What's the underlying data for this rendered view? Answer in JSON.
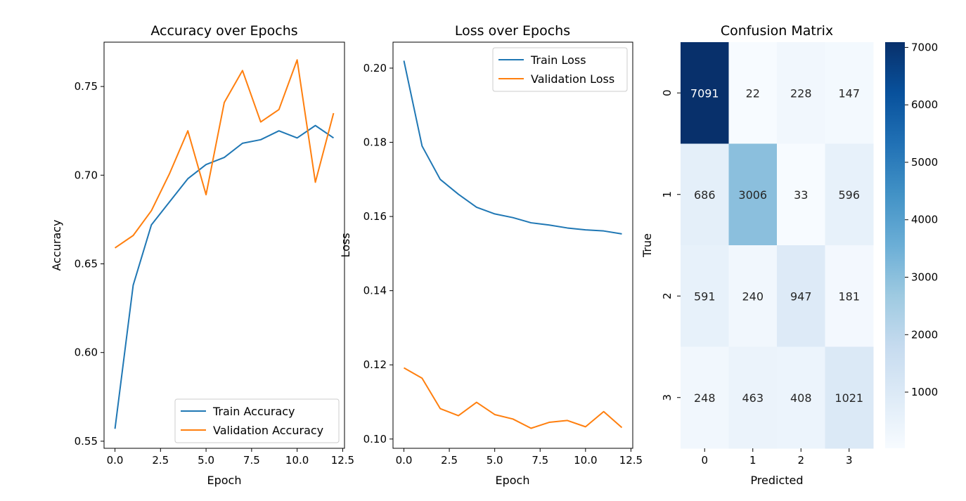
{
  "colors": {
    "train": "#1f77b4",
    "validation": "#ff7f0e",
    "heat_low": "#f7fbff",
    "heat_high": "#08306b"
  },
  "chart_data": [
    {
      "type": "line",
      "title": "Accuracy over Epochs",
      "xlabel": "Epoch",
      "ylabel": "Accuracy",
      "xlim": [
        -0.6,
        12.6
      ],
      "ylim": [
        0.546,
        0.775
      ],
      "xticks": [
        0.0,
        2.5,
        5.0,
        7.5,
        10.0,
        12.5
      ],
      "xtick_labels": [
        "0.0",
        "2.5",
        "5.0",
        "7.5",
        "10.0",
        "12.5"
      ],
      "yticks": [
        0.55,
        0.6,
        0.65,
        0.7,
        0.75
      ],
      "ytick_labels": [
        "0.55",
        "0.60",
        "0.65",
        "0.70",
        "0.75"
      ],
      "legend": "lower right",
      "grid": false,
      "x": [
        0,
        1,
        2,
        3,
        4,
        5,
        6,
        7,
        8,
        9,
        10,
        11,
        12
      ],
      "series": [
        {
          "name": "Train Accuracy",
          "color": "#1f77b4",
          "values": [
            0.557,
            0.638,
            0.672,
            0.685,
            0.698,
            0.706,
            0.71,
            0.718,
            0.72,
            0.725,
            0.721,
            0.728,
            0.721
          ]
        },
        {
          "name": "Validation Accuracy",
          "color": "#ff7f0e",
          "values": [
            0.659,
            0.666,
            0.68,
            0.701,
            0.725,
            0.689,
            0.741,
            0.759,
            0.73,
            0.737,
            0.765,
            0.696,
            0.735
          ]
        }
      ]
    },
    {
      "type": "line",
      "title": "Loss over Epochs",
      "xlabel": "Epoch",
      "ylabel": "Loss",
      "xlim": [
        -0.6,
        12.6
      ],
      "ylim": [
        0.0975,
        0.207
      ],
      "xticks": [
        0.0,
        2.5,
        5.0,
        7.5,
        10.0,
        12.5
      ],
      "xtick_labels": [
        "0.0",
        "2.5",
        "5.0",
        "7.5",
        "10.0",
        "12.5"
      ],
      "yticks": [
        0.1,
        0.12,
        0.14,
        0.16,
        0.18,
        0.2
      ],
      "ytick_labels": [
        "0.10",
        "0.12",
        "0.14",
        "0.16",
        "0.18",
        "0.20"
      ],
      "legend": "upper right",
      "grid": false,
      "x": [
        0,
        1,
        2,
        3,
        4,
        5,
        6,
        7,
        8,
        9,
        10,
        11,
        12
      ],
      "series": [
        {
          "name": "Train Loss",
          "color": "#1f77b4",
          "values": [
            0.202,
            0.179,
            0.17,
            0.166,
            0.1625,
            0.1607,
            0.1597,
            0.1583,
            0.1577,
            0.1569,
            0.1564,
            0.1561,
            0.1553
          ]
        },
        {
          "name": "Validation Loss",
          "color": "#ff7f0e",
          "values": [
            0.1192,
            0.1164,
            0.1082,
            0.1063,
            0.1099,
            0.1066,
            0.1054,
            0.1029,
            0.1045,
            0.105,
            0.1033,
            0.1074,
            0.1031
          ]
        }
      ]
    },
    {
      "type": "heatmap",
      "title": "Confusion Matrix",
      "xlabel": "Predicted",
      "ylabel": "True",
      "x_labels": [
        "0",
        "1",
        "2",
        "3"
      ],
      "y_labels": [
        "0",
        "1",
        "2",
        "3"
      ],
      "values": [
        [
          7091,
          22,
          228,
          147
        ],
        [
          686,
          3006,
          33,
          596
        ],
        [
          591,
          240,
          947,
          181
        ],
        [
          248,
          463,
          408,
          1021
        ]
      ],
      "colormap": "Blues",
      "vmin": 22,
      "vmax": 7091,
      "colorbar_ticks": [
        1000,
        2000,
        3000,
        4000,
        5000,
        6000,
        7000
      ],
      "colorbar_tick_labels": [
        "1000",
        "2000",
        "3000",
        "4000",
        "5000",
        "6000",
        "7000"
      ]
    }
  ]
}
